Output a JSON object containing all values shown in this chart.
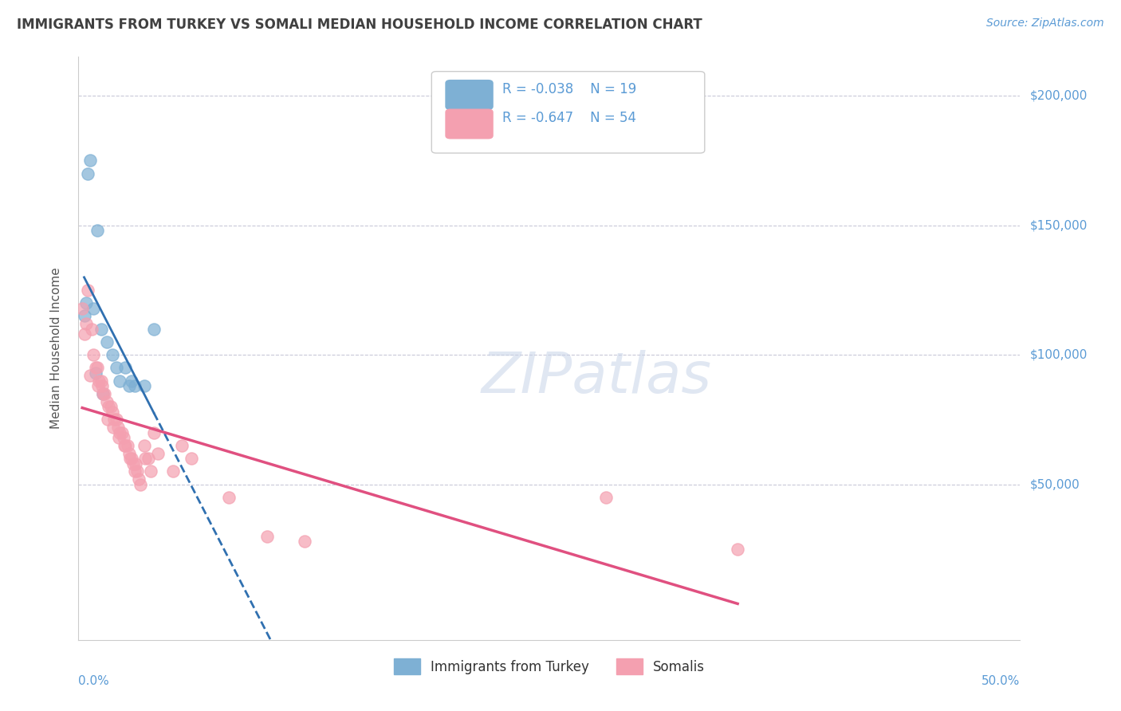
{
  "title": "IMMIGRANTS FROM TURKEY VS SOMALI MEDIAN HOUSEHOLD INCOME CORRELATION CHART",
  "source": "Source: ZipAtlas.com",
  "ylabel": "Median Household Income",
  "y_ticks": [
    50000,
    100000,
    150000,
    200000
  ],
  "y_tick_labels": [
    "$50,000",
    "$100,000",
    "$150,000",
    "$200,000"
  ],
  "xlim": [
    0,
    50
  ],
  "ylim": [
    -10000,
    215000
  ],
  "legend1_R": "-0.038",
  "legend1_N": "19",
  "legend2_R": "-0.647",
  "legend2_N": "54",
  "turkey_x": [
    0.3,
    0.8,
    0.5,
    0.6,
    1.0,
    1.2,
    1.5,
    1.8,
    2.0,
    2.2,
    2.5,
    2.8,
    3.0,
    3.5,
    4.0,
    0.4,
    0.9,
    1.3,
    2.7
  ],
  "turkey_y": [
    115000,
    118000,
    170000,
    175000,
    148000,
    110000,
    105000,
    100000,
    95000,
    90000,
    95000,
    90000,
    88000,
    88000,
    110000,
    120000,
    93000,
    85000,
    88000
  ],
  "somali_x": [
    0.2,
    0.4,
    0.5,
    0.7,
    0.8,
    0.9,
    1.0,
    1.1,
    1.2,
    1.3,
    1.4,
    1.5,
    1.6,
    1.7,
    1.8,
    1.9,
    2.0,
    2.1,
    2.2,
    2.3,
    2.4,
    2.5,
    2.6,
    2.7,
    2.8,
    2.9,
    3.0,
    3.1,
    3.2,
    3.3,
    3.5,
    3.7,
    4.0,
    4.2,
    5.0,
    5.5,
    6.0,
    8.0,
    10.0,
    12.0,
    0.3,
    0.6,
    1.05,
    1.25,
    1.55,
    1.85,
    2.15,
    2.45,
    2.75,
    3.05,
    3.55,
    3.85,
    28.0,
    35.0
  ],
  "somali_y": [
    118000,
    112000,
    125000,
    110000,
    100000,
    95000,
    95000,
    90000,
    90000,
    85000,
    85000,
    82000,
    80000,
    80000,
    78000,
    75000,
    75000,
    72000,
    70000,
    70000,
    68000,
    65000,
    65000,
    62000,
    60000,
    58000,
    55000,
    55000,
    52000,
    50000,
    65000,
    60000,
    70000,
    62000,
    55000,
    65000,
    60000,
    45000,
    30000,
    28000,
    108000,
    92000,
    88000,
    88000,
    75000,
    72000,
    68000,
    65000,
    60000,
    58000,
    60000,
    55000,
    45000,
    25000
  ],
  "turkey_color": "#7eb0d4",
  "somali_color": "#f4a0b0",
  "turkey_line_color": "#3070b0",
  "somali_line_color": "#e05080",
  "grid_color": "#c8c8d8",
  "watermark": "ZIPatlas",
  "bg_color": "#ffffff",
  "title_color": "#404040",
  "source_color": "#5b9bd5",
  "axis_label_color": "#5b9bd5",
  "legend_R_color": "#5b9bd5"
}
